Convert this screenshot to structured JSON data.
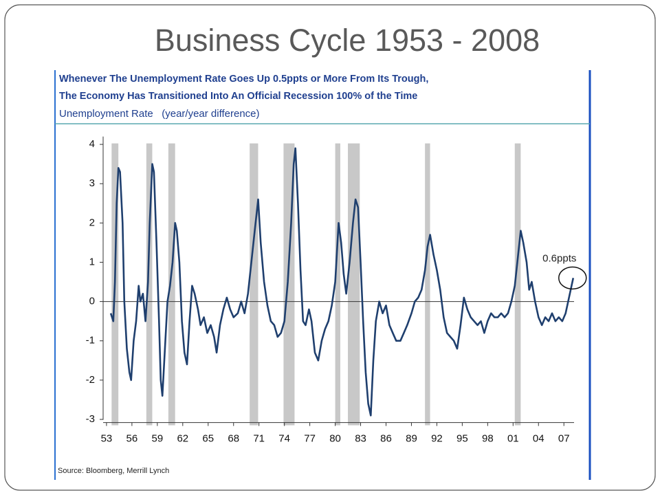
{
  "slide_title": "Business Cycle 1953 - 2008",
  "chart_data": {
    "type": "line",
    "title": [
      "Whenever The Unemployment Rate Goes Up 0.5ppts or More From Its Trough,",
      "The Economy Has Transitioned Into An Official Recession 100% of the Time"
    ],
    "y_label": "Unemployment Rate   (year/year difference)",
    "source": "Source: Bloomberg, Merrill Lynch",
    "xlim": [
      1952.6,
      2008.2
    ],
    "ylim": [
      -3.15,
      4.2
    ],
    "xticks": [
      {
        "value": 1953,
        "label": "53"
      },
      {
        "value": 1956,
        "label": "56"
      },
      {
        "value": 1959,
        "label": "59"
      },
      {
        "value": 1962,
        "label": "62"
      },
      {
        "value": 1965,
        "label": "65"
      },
      {
        "value": 1968,
        "label": "68"
      },
      {
        "value": 1971,
        "label": "71"
      },
      {
        "value": 1974,
        "label": "74"
      },
      {
        "value": 1977,
        "label": "77"
      },
      {
        "value": 1980,
        "label": "80"
      },
      {
        "value": 1983,
        "label": "83"
      },
      {
        "value": 1986,
        "label": "86"
      },
      {
        "value": 1989,
        "label": "89"
      },
      {
        "value": 1992,
        "label": "92"
      },
      {
        "value": 1995,
        "label": "95"
      },
      {
        "value": 1998,
        "label": "98"
      },
      {
        "value": 2001,
        "label": "01"
      },
      {
        "value": 2004,
        "label": "04"
      },
      {
        "value": 2007,
        "label": "07"
      }
    ],
    "yticks": [
      -3,
      -2,
      -1,
      0,
      1,
      2,
      3,
      4
    ],
    "recession_color": "#c8c8c8",
    "recessions": [
      [
        1953.6,
        1954.4
      ],
      [
        1957.7,
        1958.4
      ],
      [
        1960.3,
        1961.1
      ],
      [
        1969.9,
        1970.9
      ],
      [
        1973.9,
        1975.2
      ],
      [
        1980.0,
        1980.6
      ],
      [
        1981.5,
        1982.9
      ],
      [
        1990.6,
        1991.2
      ],
      [
        2001.2,
        2001.9
      ]
    ],
    "series": [
      {
        "name": "Unemployment Rate",
        "color": "#1f3f6e",
        "x": [
          1953.5,
          1953.8,
          1954.0,
          1954.2,
          1954.4,
          1954.6,
          1954.9,
          1955.1,
          1955.4,
          1955.7,
          1955.9,
          1956.2,
          1956.5,
          1956.8,
          1957.0,
          1957.3,
          1957.6,
          1957.9,
          1958.1,
          1958.4,
          1958.6,
          1958.9,
          1959.2,
          1959.4,
          1959.6,
          1959.9,
          1960.2,
          1960.5,
          1960.8,
          1961.1,
          1961.3,
          1961.6,
          1961.9,
          1962.2,
          1962.5,
          1962.8,
          1963.1,
          1963.4,
          1963.8,
          1964.1,
          1964.5,
          1964.9,
          1965.3,
          1965.7,
          1966.0,
          1966.4,
          1966.8,
          1967.2,
          1967.6,
          1968.0,
          1968.5,
          1968.9,
          1969.3,
          1969.7,
          1970.1,
          1970.5,
          1970.9,
          1971.2,
          1971.6,
          1972.0,
          1972.4,
          1972.8,
          1973.2,
          1973.6,
          1974.0,
          1974.4,
          1974.8,
          1975.1,
          1975.3,
          1975.6,
          1975.9,
          1976.2,
          1976.5,
          1976.9,
          1977.2,
          1977.6,
          1978.0,
          1978.4,
          1978.8,
          1979.2,
          1979.6,
          1980.0,
          1980.4,
          1980.7,
          1981.0,
          1981.3,
          1981.7,
          1982.1,
          1982.4,
          1982.7,
          1983.0,
          1983.3,
          1983.6,
          1983.9,
          1984.2,
          1984.5,
          1984.8,
          1985.2,
          1985.6,
          1986.0,
          1986.4,
          1986.8,
          1987.2,
          1987.7,
          1988.1,
          1988.5,
          1989.0,
          1989.4,
          1989.8,
          1990.2,
          1990.6,
          1990.9,
          1991.2,
          1991.6,
          1992.0,
          1992.4,
          1992.8,
          1993.2,
          1993.6,
          1994.0,
          1994.4,
          1994.8,
          1995.2,
          1995.6,
          1996.0,
          1996.4,
          1996.8,
          1997.2,
          1997.6,
          1998.0,
          1998.4,
          1998.8,
          1999.2,
          1999.6,
          2000.0,
          2000.4,
          2000.8,
          2001.2,
          2001.6,
          2001.9,
          2002.2,
          2002.6,
          2002.9,
          2003.2,
          2003.6,
          2004.0,
          2004.4,
          2004.8,
          2005.2,
          2005.6,
          2006.0,
          2006.4,
          2006.8,
          2007.2,
          2007.5,
          2007.8,
          2008.1
        ],
        "values": [
          -0.3,
          -0.5,
          0.5,
          2.5,
          3.4,
          3.3,
          2.0,
          0,
          -1.2,
          -1.8,
          -2.0,
          -1.0,
          -0.5,
          0.4,
          0,
          0.2,
          -0.5,
          0.5,
          2.0,
          3.5,
          3.3,
          1.5,
          -0.5,
          -2.0,
          -2.4,
          -1.2,
          0,
          0.4,
          1.0,
          2.0,
          1.8,
          1.0,
          -0.5,
          -1.3,
          -1.6,
          -0.5,
          0.4,
          0.2,
          -0.2,
          -0.6,
          -0.4,
          -0.8,
          -0.6,
          -0.9,
          -1.3,
          -0.6,
          -0.2,
          0.1,
          -0.2,
          -0.4,
          -0.3,
          0.0,
          -0.3,
          0.2,
          1.0,
          1.8,
          2.6,
          1.5,
          0.5,
          -0.1,
          -0.5,
          -0.6,
          -0.9,
          -0.8,
          -0.5,
          0.5,
          2.0,
          3.5,
          3.9,
          2.5,
          0.8,
          -0.5,
          -0.6,
          -0.2,
          -0.5,
          -1.3,
          -1.5,
          -1.0,
          -0.7,
          -0.5,
          -0.1,
          0.5,
          2.0,
          1.5,
          0.7,
          0.2,
          1.0,
          2.0,
          2.6,
          2.4,
          1.0,
          -0.5,
          -1.8,
          -2.6,
          -2.9,
          -1.5,
          -0.5,
          0,
          -0.3,
          -0.1,
          -0.6,
          -0.8,
          -1.0,
          -1.0,
          -0.8,
          -0.6,
          -0.3,
          0.0,
          0.1,
          0.3,
          0.8,
          1.4,
          1.7,
          1.2,
          0.8,
          0.3,
          -0.4,
          -0.8,
          -0.9,
          -1.0,
          -1.2,
          -0.6,
          0.1,
          -0.2,
          -0.4,
          -0.5,
          -0.6,
          -0.5,
          -0.8,
          -0.5,
          -0.3,
          -0.4,
          -0.4,
          -0.3,
          -0.4,
          -0.3,
          0.0,
          0.4,
          1.2,
          1.8,
          1.5,
          1.0,
          0.3,
          0.5,
          0.0,
          -0.4,
          -0.6,
          -0.4,
          -0.5,
          -0.3,
          -0.5,
          -0.4,
          -0.5,
          -0.3,
          0.0,
          0.3,
          0.6
        ]
      }
    ],
    "annotations": [
      {
        "text": "0.6ppts",
        "x": 2008.1,
        "y": 0.6
      }
    ]
  }
}
